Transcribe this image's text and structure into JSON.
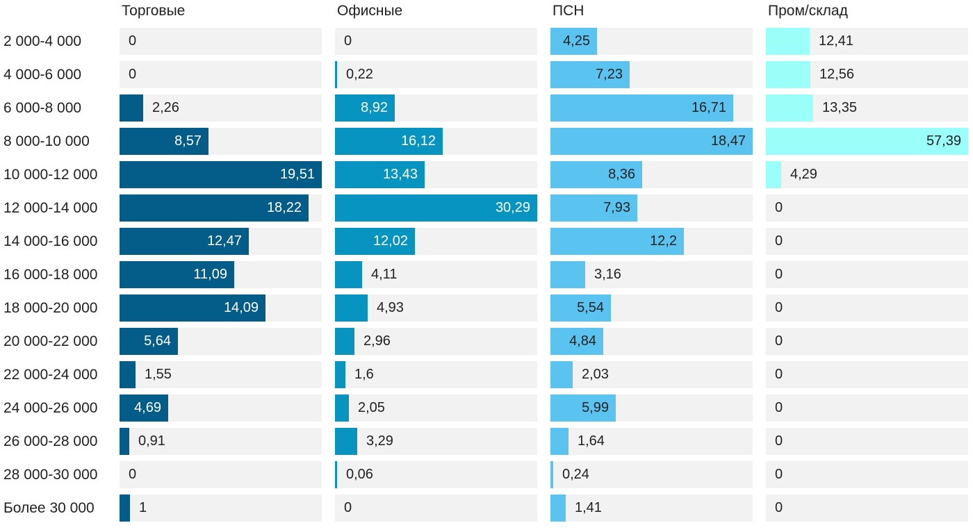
{
  "chart_data": {
    "type": "bar",
    "orientation": "horizontal",
    "title": "",
    "xlabel": "",
    "ylabel": "",
    "legend": "none",
    "grid": "off",
    "decimal_separator": ",",
    "value_scaling": "each column scaled independently to its own maximum value",
    "track_color": "#F2F2F2",
    "text_color": "#212121",
    "categories": [
      "2 000-4 000",
      "4 000-6 000",
      "6 000-8 000",
      "8 000-10 000",
      "10 000-12 000",
      "12 000-14 000",
      "14 000-16 000",
      "16 000-18 000",
      "18 000-20 000",
      "20 000-22 000",
      "22 000-24 000",
      "24 000-26 000",
      "26 000-28 000",
      "28 000-30 000",
      "Более 30 000"
    ],
    "series": [
      {
        "name": "Торговые",
        "color": "#045D88",
        "label_color_inside": "#ffffff",
        "max": 19.51,
        "values": [
          0,
          0,
          2.26,
          8.57,
          19.51,
          18.22,
          12.47,
          11.09,
          14.09,
          5.64,
          1.55,
          4.69,
          0.91,
          0,
          1
        ]
      },
      {
        "name": "Офисные",
        "color": "#0894C1",
        "label_color_inside": "#ffffff",
        "max": 30.29,
        "values": [
          0,
          0.22,
          8.92,
          16.12,
          13.43,
          30.29,
          12.02,
          4.11,
          4.93,
          2.96,
          1.6,
          2.05,
          3.29,
          0.06,
          0
        ]
      },
      {
        "name": "ПСН",
        "color": "#5BC3F0",
        "label_color_inside": "#212121",
        "max": 18.47,
        "values": [
          4.25,
          7.23,
          16.71,
          18.47,
          8.36,
          7.93,
          12.2,
          3.16,
          5.54,
          4.84,
          2.03,
          5.99,
          1.64,
          0.24,
          1.41
        ]
      },
      {
        "name": "Пром/склад",
        "color": "#9AFEF9",
        "label_color_inside": "#212121",
        "max": 57.39,
        "values": [
          12.41,
          12.56,
          13.35,
          57.39,
          4.29,
          0,
          0,
          0,
          0,
          0,
          0,
          0,
          0,
          0,
          0
        ]
      }
    ]
  }
}
